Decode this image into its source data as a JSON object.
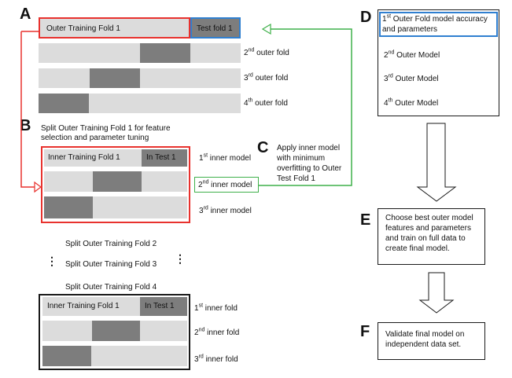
{
  "panels": {
    "A": "A",
    "B": "B",
    "C": "C",
    "D": "D",
    "E": "E",
    "F": "F"
  },
  "outer": {
    "training_label": "Outer Training Fold 1",
    "test_label": "Test fold 1",
    "rows": [
      {
        "sup": "nd",
        "rest": " outer fold",
        "num": "2"
      },
      {
        "sup": "rd",
        "rest": "  outer fold",
        "num": "3"
      },
      {
        "sup": "th",
        "rest": " outer fold",
        "num": "4"
      }
    ]
  },
  "split_b": {
    "title_line1": "Split Outer Training Fold 1 for feature",
    "title_line2": "selection and parameter tuning",
    "inner_training_label": "Inner Training Fold 1",
    "inner_test_label": "In Test 1",
    "rows": [
      {
        "num": "1",
        "sup": "st",
        "rest": " inner model"
      },
      {
        "num": "2",
        "sup": "nd",
        "rest": " inner model"
      },
      {
        "num": "3",
        "sup": "rd",
        "rest": " inner model"
      }
    ]
  },
  "panel_c": {
    "lines": [
      "Apply inner model",
      "with minimum",
      "overfitting  to Outer",
      "Test Fold 1"
    ]
  },
  "splits": {
    "fold2": "Split Outer Training Fold 2",
    "fold3": "Split Outer Training Fold 3",
    "fold4": "Split Outer Training Fold 4",
    "dots": "⋮"
  },
  "split_bottom": {
    "inner_training_label": "Inner Training Fold 1",
    "inner_test_label": "In Test 1",
    "rows": [
      {
        "num": "1",
        "sup": "st",
        "rest": " inner fold"
      },
      {
        "num": "2",
        "sup": "nd",
        "rest": " inner fold"
      },
      {
        "num": "3",
        "sup": "rd",
        "rest": " inner fold"
      }
    ]
  },
  "panel_d": {
    "first_num": "1",
    "first_sup": "st",
    "first_rest": " Outer Fold model accuracy",
    "first_line2": "and parameters",
    "items": [
      {
        "num": "2",
        "sup": "nd",
        "rest": " Outer Model"
      },
      {
        "num": "3",
        "sup": "rd",
        "rest": "  Outer Model"
      },
      {
        "num": "4",
        "sup": "th",
        "rest": " Outer Model"
      }
    ]
  },
  "panel_e": {
    "lines": [
      "Choose best outer model",
      "features and parameters",
      "and train on full data to",
      "create final model."
    ]
  },
  "panel_f": {
    "lines": [
      "Validate final model on",
      "independent data set."
    ]
  },
  "colors": {
    "red": "#e8322e",
    "blue": "#2f7fd0",
    "green": "#3fb04a",
    "light": "#dcdcdc",
    "dark": "#7d7d7d"
  }
}
